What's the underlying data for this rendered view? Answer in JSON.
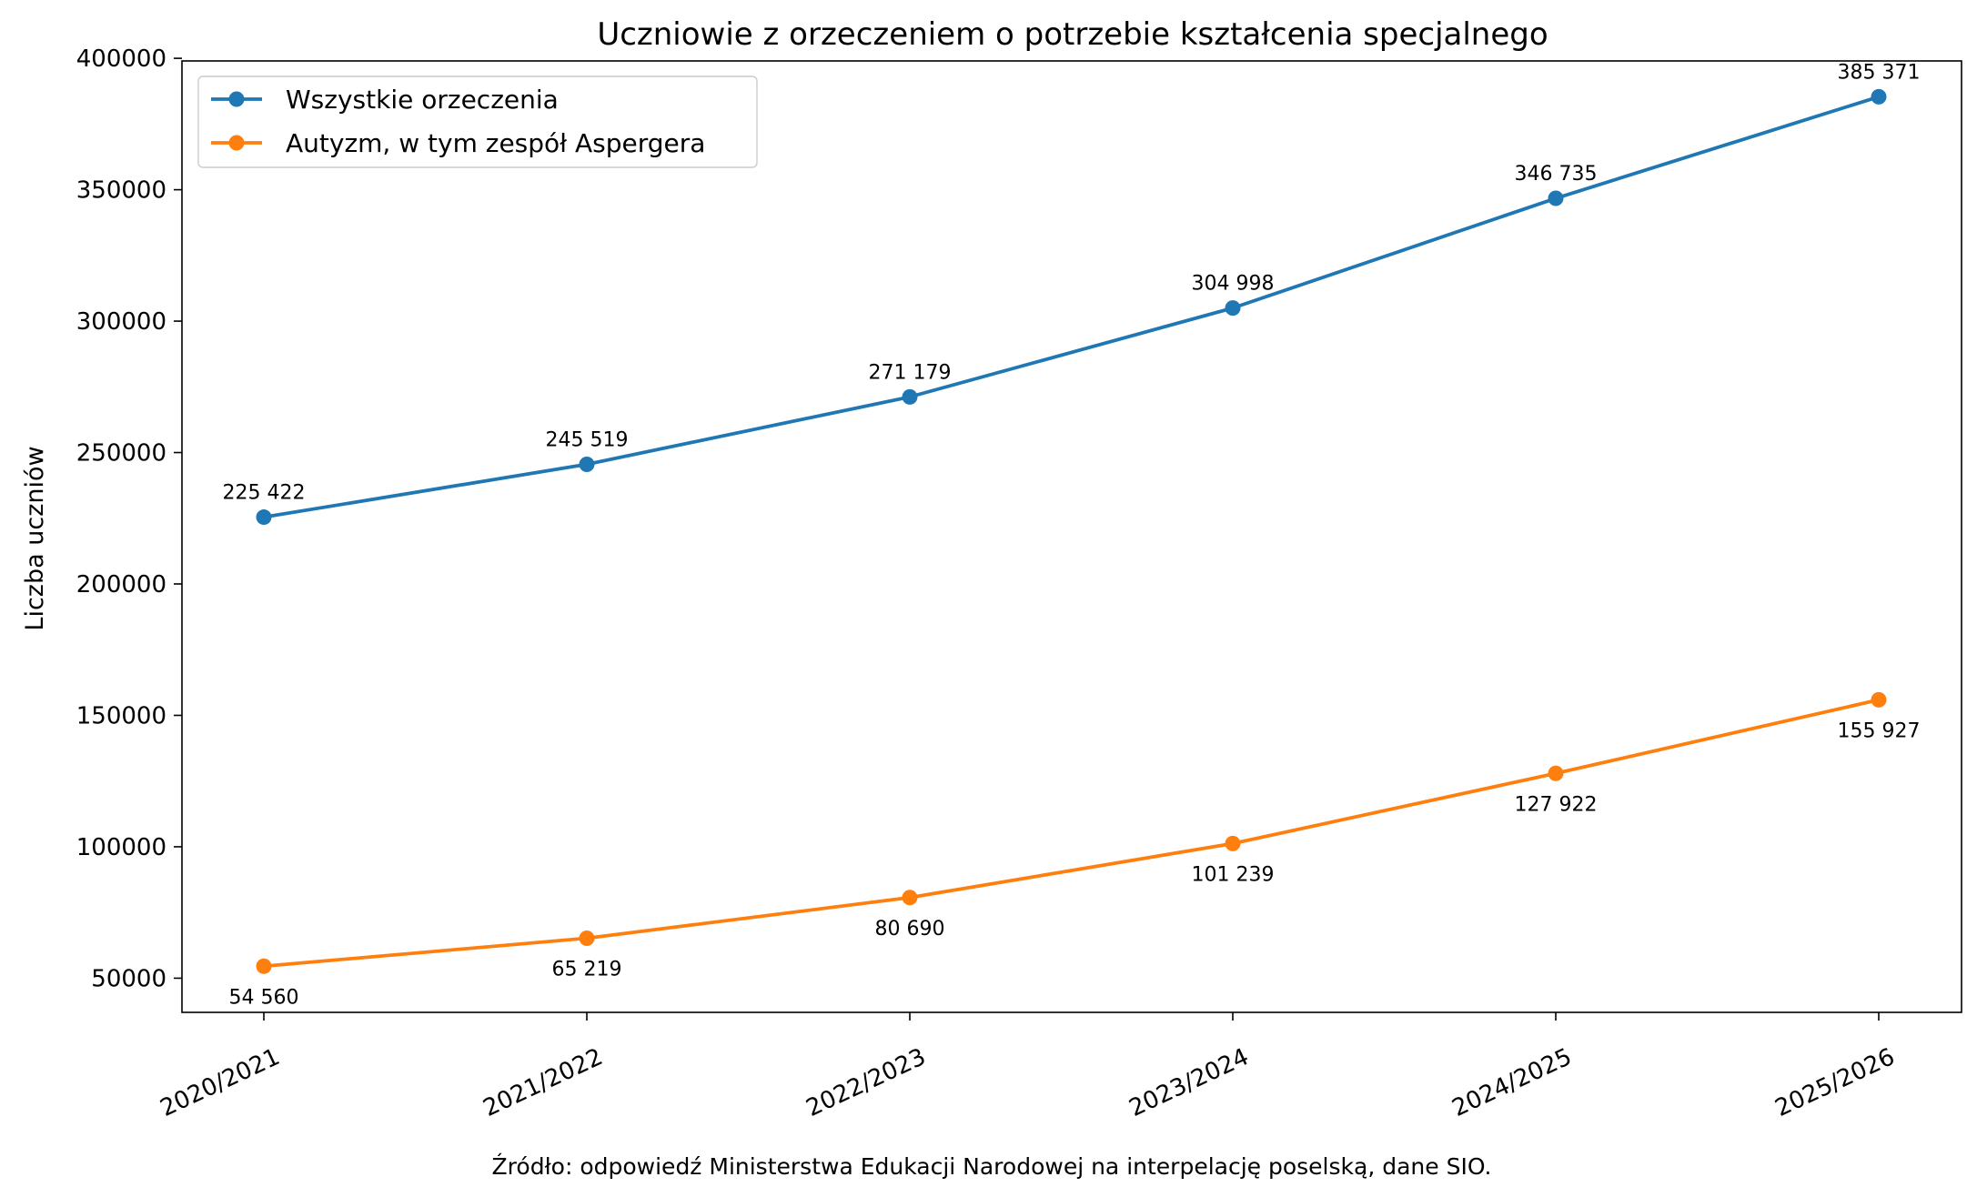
{
  "chart_data": {
    "type": "line",
    "title": "Uczniowie z orzeczeniem o potrzebie kształcenia specjalnego",
    "xlabel": "",
    "ylabel": "Liczba uczniów",
    "categories": [
      "2020/2021",
      "2021/2022",
      "2022/2023",
      "2023/2024",
      "2024/2025",
      "2025/2026"
    ],
    "ylim": [
      37000,
      399000
    ],
    "yticks": [
      50000,
      100000,
      150000,
      200000,
      250000,
      300000,
      350000,
      400000
    ],
    "ytick_labels": [
      "50000",
      "100000",
      "150000",
      "200000",
      "250000",
      "300000",
      "350000",
      "400000"
    ],
    "grid": false,
    "legend_position": "top-left",
    "series": [
      {
        "name": "Wszystkie orzeczenia",
        "color": "#1f77b4",
        "values": [
          225422,
          245519,
          271179,
          304998,
          346735,
          385371
        ],
        "labels": [
          "225 422",
          "245 519",
          "271 179",
          "304 998",
          "346 735",
          "385 371"
        ],
        "label_position": "above"
      },
      {
        "name": "Autyzm, w tym zespół Aspergera",
        "color": "#ff7f0e",
        "values": [
          54560,
          65219,
          80690,
          101239,
          127922,
          155927
        ],
        "labels": [
          "54 560",
          "65 219",
          "80 690",
          "101 239",
          "127 922",
          "155 927"
        ],
        "label_position": "below"
      }
    ],
    "source_note": "Źródło: odpowiedź Ministerstwa Edukacji Narodowej na interpelację poselską, dane SIO."
  }
}
